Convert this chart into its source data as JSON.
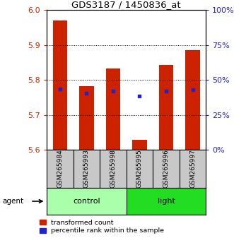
{
  "title": "GDS3187 / 1450836_at",
  "samples": [
    "GSM265984",
    "GSM265993",
    "GSM265998",
    "GSM265995",
    "GSM265996",
    "GSM265997"
  ],
  "bar_tops": [
    5.97,
    5.782,
    5.832,
    5.63,
    5.843,
    5.886
  ],
  "bar_bottom": 5.6,
  "blue_y": [
    5.775,
    5.763,
    5.768,
    5.754,
    5.768,
    5.773
  ],
  "ylim": [
    5.6,
    6.0
  ],
  "yticks": [
    5.6,
    5.7,
    5.8,
    5.9,
    6.0
  ],
  "right_yticks": [
    0,
    25,
    50,
    75,
    100
  ],
  "right_ylabels": [
    "0%",
    "25%",
    "50%",
    "75%",
    "100%"
  ],
  "bar_color": "#cc2200",
  "blue_color": "#2222cc",
  "bar_width": 0.55,
  "groups": [
    {
      "label": "control",
      "color": "#aaffaa"
    },
    {
      "label": "light",
      "color": "#22dd22"
    }
  ],
  "xlabel_color": "#cc2200",
  "right_axis_color": "#2222cc",
  "background_color": "#ffffff"
}
